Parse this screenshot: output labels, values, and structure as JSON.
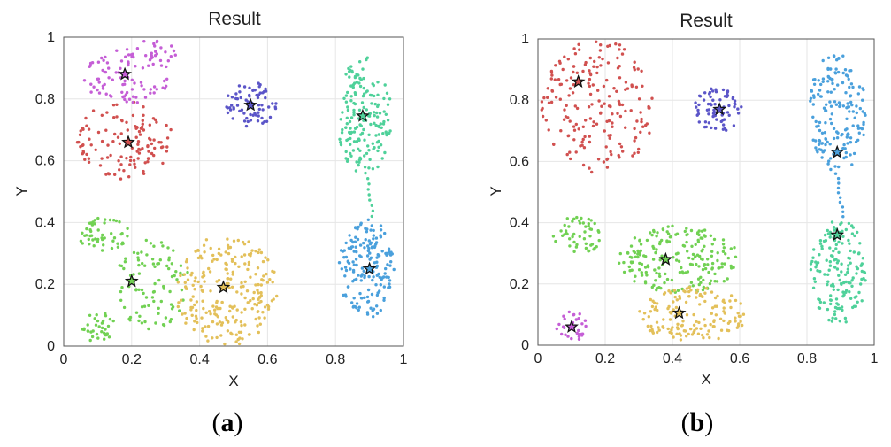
{
  "chart_data": [
    {
      "type": "scatter",
      "title": "Result",
      "xlabel": "X",
      "ylabel": "Y",
      "xlim": [
        0,
        1
      ],
      "ylim": [
        0,
        1
      ],
      "xticks": [
        "0",
        "0.2",
        "0.4",
        "0.6",
        "0.8",
        "1"
      ],
      "yticks": [
        "0",
        "0.2",
        "0.4",
        "0.6",
        "0.8",
        "1"
      ],
      "grid": true,
      "caption_letter": "a",
      "clusters": [
        {
          "name": "magenta",
          "color": "#c55ed6",
          "centroid": [
            0.18,
            0.88
          ]
        },
        {
          "name": "red",
          "color": "#d1504f",
          "centroid": [
            0.19,
            0.66
          ]
        },
        {
          "name": "purple",
          "color": "#5b55c8",
          "centroid": [
            0.55,
            0.78
          ]
        },
        {
          "name": "teal",
          "color": "#4fd19a",
          "centroid": [
            0.88,
            0.745
          ]
        },
        {
          "name": "blue",
          "color": "#4aa0dc",
          "centroid": [
            0.9,
            0.25
          ]
        },
        {
          "name": "green",
          "color": "#71d153",
          "centroid": [
            0.2,
            0.21
          ]
        },
        {
          "name": "yellow",
          "color": "#e3c05a",
          "centroid": [
            0.47,
            0.19
          ]
        }
      ]
    },
    {
      "type": "scatter",
      "title": "Result",
      "xlabel": "X",
      "ylabel": "Y",
      "xlim": [
        0,
        1
      ],
      "ylim": [
        0,
        1
      ],
      "xticks": [
        "0",
        "0.2",
        "0.4",
        "0.6",
        "0.8",
        "1"
      ],
      "yticks": [
        "0",
        "0.2",
        "0.4",
        "0.6",
        "0.8",
        "1"
      ],
      "grid": true,
      "caption_letter": "b",
      "clusters": [
        {
          "name": "red",
          "color": "#d1504f",
          "centroid": [
            0.12,
            0.86
          ]
        },
        {
          "name": "purple",
          "color": "#5b55c8",
          "centroid": [
            0.54,
            0.77
          ]
        },
        {
          "name": "blue",
          "color": "#4aa0dc",
          "centroid": [
            0.89,
            0.63
          ]
        },
        {
          "name": "teal",
          "color": "#4fd19a",
          "centroid": [
            0.89,
            0.36
          ]
        },
        {
          "name": "green",
          "color": "#71d153",
          "centroid": [
            0.38,
            0.28
          ]
        },
        {
          "name": "yellow",
          "color": "#e3c05a",
          "centroid": [
            0.42,
            0.105
          ]
        },
        {
          "name": "magenta",
          "color": "#c55ed6",
          "centroid": [
            0.1,
            0.06
          ]
        }
      ]
    }
  ]
}
